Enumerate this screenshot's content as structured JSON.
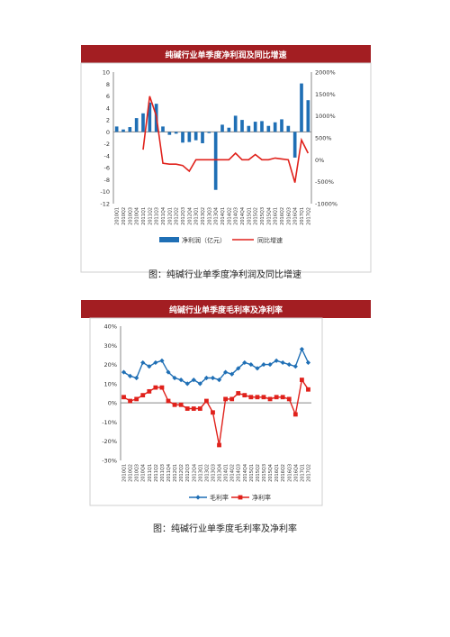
{
  "chart1": {
    "title": "纯碱行业单季度净利润及同比增速",
    "caption": "图：纯碱行业单季度净利润及同比增速",
    "chart_data": {
      "type": "bar",
      "categories": [
        "2010Q1",
        "2010Q2",
        "2010Q3",
        "2010Q4",
        "2011Q1",
        "2011Q2",
        "2011Q3",
        "2011Q4",
        "2012Q1",
        "2012Q2",
        "2012Q3",
        "2012Q4",
        "2013Q1",
        "2013Q2",
        "2013Q3",
        "2013Q4",
        "2014Q1",
        "2014Q2",
        "2014Q3",
        "2014Q4",
        "2015Q1",
        "2015Q2",
        "2015Q3",
        "2015Q4",
        "2016Q1",
        "2016Q2",
        "2016Q3",
        "2016Q4",
        "2017Q1",
        "2017Q2"
      ],
      "series": [
        {
          "name": "净利润（亿元）",
          "axis": "left",
          "type": "bar",
          "color": "#1f6fb5",
          "values": [
            0.9,
            0.4,
            0.8,
            2.3,
            3.1,
            4.9,
            4.7,
            0.9,
            -0.5,
            -0.3,
            -1.8,
            -1.7,
            -1.4,
            -1.9,
            -0.2,
            -9.7,
            1.2,
            0.7,
            2.7,
            2.0,
            1.0,
            1.7,
            1.8,
            1.0,
            1.6,
            2.1,
            1.0,
            -4.3,
            8.1,
            5.3
          ]
        },
        {
          "name": "同比增速",
          "axis": "right",
          "type": "line",
          "color": "#e0211b",
          "values": [
            null,
            null,
            null,
            null,
            230,
            1450,
            1000,
            -80,
            -100,
            -100,
            -130,
            -260,
            0,
            0,
            0,
            0,
            0,
            0,
            150,
            0,
            0,
            120,
            0,
            0,
            40,
            20,
            0,
            -520,
            450,
            150
          ]
        }
      ],
      "ylim_left": [
        -12,
        10
      ],
      "yticks_left": [
        10,
        8,
        6,
        4,
        2,
        0,
        -2,
        -4,
        -6,
        -8,
        -10,
        -12
      ],
      "ylim_right": [
        -1000,
        2000
      ],
      "yticks_right_labels": [
        "2000%",
        "1500%",
        "1000%",
        "500%",
        "0%",
        "-500%",
        "-1000%"
      ],
      "legend_position": "bottom"
    }
  },
  "chart2": {
    "title": "纯碱行业单季度毛利率及净利率",
    "caption": "图：纯碱行业单季度毛利率及净利率",
    "chart_data": {
      "type": "line",
      "categories": [
        "2010Q1",
        "2010Q2",
        "2010Q3",
        "2010Q4",
        "2011Q1",
        "2011Q2",
        "2011Q3",
        "2011Q4",
        "2012Q1",
        "2012Q2",
        "2012Q3",
        "2012Q4",
        "2013Q1",
        "2013Q2",
        "2013Q3",
        "2013Q4",
        "2014Q1",
        "2014Q2",
        "2014Q3",
        "2014Q4",
        "2015Q1",
        "2015Q2",
        "2015Q3",
        "2015Q4",
        "2016Q1",
        "2016Q2",
        "2016Q3",
        "2016Q4",
        "2017Q1",
        "2017Q2"
      ],
      "series": [
        {
          "name": "毛利率",
          "color": "#1f6fb5",
          "marker": "diamond",
          "values": [
            16,
            14,
            13,
            21,
            19,
            21,
            22,
            16,
            13,
            12,
            10,
            12,
            10,
            13,
            13,
            12,
            16,
            15,
            18,
            21,
            20,
            18,
            20,
            20,
            22,
            21,
            20,
            19,
            28,
            21
          ]
        },
        {
          "name": "净利率",
          "color": "#e0211b",
          "marker": "square",
          "values": [
            3,
            1,
            2,
            4,
            6,
            8,
            8,
            1,
            -1,
            -1,
            -3,
            -3,
            -3,
            1,
            -5,
            -22,
            2,
            2,
            5,
            4,
            3,
            3,
            3,
            2,
            3,
            3,
            2,
            -6,
            12,
            7
          ]
        }
      ],
      "ylim": [
        -30,
        40
      ],
      "yticks_labels": [
        "40%",
        "30%",
        "20%",
        "10%",
        "0%",
        "-10%",
        "-20%",
        "-30%"
      ],
      "legend_position": "bottom"
    }
  }
}
